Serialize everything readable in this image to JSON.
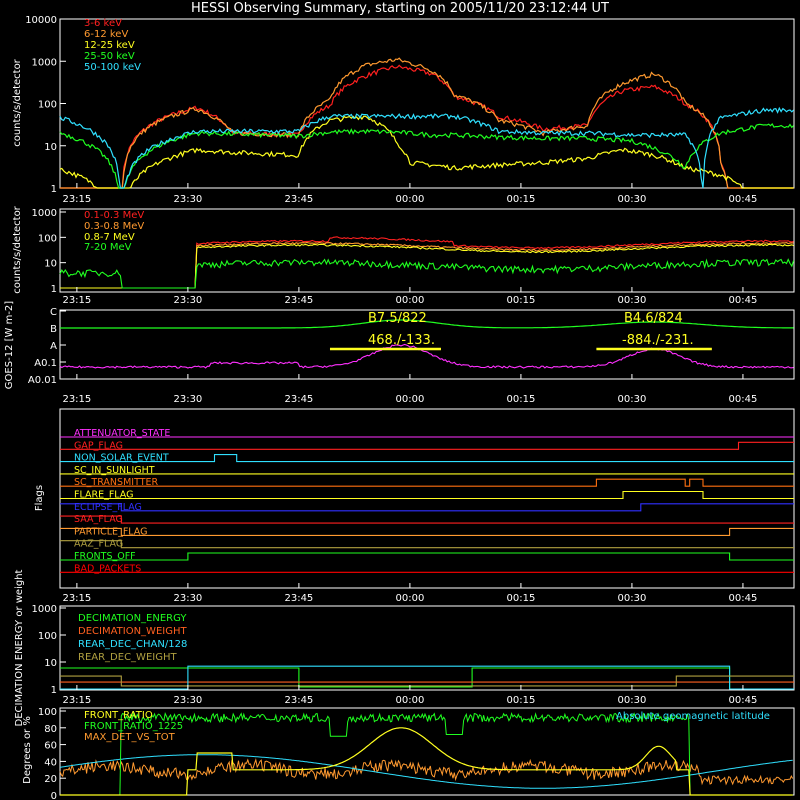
{
  "title": "HESSI Observing Summary, starting on 2005/11/20 23:12:44 UT",
  "time_labels": [
    "23:15",
    "23:30",
    "23:45",
    "00:00",
    "00:15",
    "00:30",
    "00:45"
  ],
  "colors": {
    "bg": "#000000",
    "axis": "#ffffff",
    "red": "#ff2020",
    "orange": "#ff9a30",
    "yellow": "#ffff20",
    "green": "#20ff20",
    "cyan": "#30e0ff",
    "magenta": "#ff30ff",
    "blue": "#3030ff",
    "olive": "#b0a040",
    "darkorange": "#ff7010",
    "darkred": "#ff0000"
  },
  "chart_data": [
    {
      "type": "line",
      "panel": "hxr",
      "ylabel": "counts/s/detector",
      "yscale": "log",
      "ylim": [
        1,
        10000
      ],
      "yticks": [
        "1",
        "10",
        "100",
        "1000",
        "10000"
      ],
      "series": [
        {
          "name": "3-6 keV",
          "color": "red",
          "points": [
            [
              23.2,
              0
            ],
            [
              23.35,
              0
            ],
            [
              23.52,
              80
            ],
            [
              23.6,
              20
            ],
            [
              23.75,
              18
            ],
            [
              23.82,
              90
            ],
            [
              23.9,
              450
            ],
            [
              23.97,
              750
            ],
            [
              24.05,
              500
            ],
            [
              24.1,
              150
            ],
            [
              24.2,
              50
            ],
            [
              24.3,
              25
            ],
            [
              24.4,
              30
            ],
            [
              24.48,
              200
            ],
            [
              24.55,
              250
            ],
            [
              24.62,
              100
            ],
            [
              24.7,
              4
            ],
            [
              24.72,
              0
            ],
            [
              24.8,
              0
            ]
          ]
        },
        {
          "name": "6-12 keV",
          "color": "orange",
          "points": [
            [
              23.2,
              0
            ],
            [
              23.35,
              0
            ],
            [
              23.52,
              75
            ],
            [
              23.6,
              20
            ],
            [
              23.75,
              18
            ],
            [
              23.82,
              120
            ],
            [
              23.9,
              800
            ],
            [
              23.97,
              1100
            ],
            [
              24.05,
              600
            ],
            [
              24.1,
              160
            ],
            [
              24.2,
              40
            ],
            [
              24.3,
              20
            ],
            [
              24.4,
              30
            ],
            [
              24.48,
              300
            ],
            [
              24.55,
              500
            ],
            [
              24.62,
              100
            ],
            [
              24.7,
              4
            ],
            [
              24.72,
              0
            ],
            [
              24.8,
              0
            ]
          ]
        },
        {
          "name": "12-25 keV",
          "color": "yellow",
          "points": [
            [
              23.2,
              3
            ],
            [
              23.35,
              0
            ],
            [
              23.52,
              8
            ],
            [
              23.6,
              7
            ],
            [
              23.75,
              6
            ],
            [
              23.82,
              40
            ],
            [
              23.9,
              50
            ],
            [
              23.97,
              12
            ],
            [
              24.0,
              4
            ],
            [
              24.1,
              3
            ],
            [
              24.3,
              4
            ],
            [
              24.4,
              5
            ],
            [
              24.48,
              8
            ],
            [
              24.55,
              6
            ],
            [
              24.62,
              3
            ],
            [
              24.7,
              2
            ],
            [
              24.8,
              0
            ]
          ]
        },
        {
          "name": "25-50 keV",
          "color": "green",
          "points": [
            [
              23.2,
              22
            ],
            [
              23.35,
              0
            ],
            [
              23.52,
              20
            ],
            [
              23.6,
              19
            ],
            [
              23.75,
              17
            ],
            [
              23.82,
              21
            ],
            [
              23.9,
              22
            ],
            [
              23.97,
              21
            ],
            [
              24.05,
              18
            ],
            [
              24.1,
              18
            ],
            [
              24.2,
              16
            ],
            [
              24.3,
              15
            ],
            [
              24.4,
              15
            ],
            [
              24.5,
              13
            ],
            [
              24.62,
              3
            ],
            [
              24.7,
              20
            ],
            [
              24.8,
              30
            ]
          ]
        },
        {
          "name": "50-100 keV",
          "color": "cyan",
          "points": [
            [
              23.2,
              50
            ],
            [
              23.35,
              0
            ],
            [
              23.52,
              22
            ],
            [
              23.6,
              22
            ],
            [
              23.75,
              22
            ],
            [
              23.82,
              50
            ],
            [
              23.9,
              50
            ],
            [
              23.97,
              50
            ],
            [
              24.05,
              50
            ],
            [
              24.1,
              50
            ],
            [
              24.2,
              22
            ],
            [
              24.3,
              20
            ],
            [
              24.4,
              20
            ],
            [
              24.5,
              18
            ],
            [
              24.62,
              18
            ],
            [
              24.66,
              0
            ],
            [
              24.7,
              45
            ],
            [
              24.8,
              70
            ]
          ]
        }
      ]
    },
    {
      "type": "line",
      "panel": "gamma",
      "ylabel": "counts/s/detector",
      "yscale": "log",
      "ylim": [
        1,
        1000
      ],
      "yticks": [
        "1",
        "10",
        "100",
        "1000"
      ],
      "series": [
        {
          "name": "0.1-0.3 MeV",
          "color": "red"
        },
        {
          "name": "0.3-0.8 MeV",
          "color": "orange"
        },
        {
          "name": "0.8-7 MeV",
          "color": "yellow"
        },
        {
          "name": "7-20 MeV",
          "color": "green"
        }
      ]
    },
    {
      "type": "line",
      "panel": "goes",
      "ylabel": "GOES-12 [W m-2]",
      "yticks": [
        "A0.01",
        "A0.1",
        "A",
        "B",
        "C"
      ],
      "annotations": [
        "B7.5/822",
        "B4.6/824",
        "468./-133.",
        "-884./-231."
      ]
    },
    {
      "type": "table",
      "panel": "flags",
      "ylabel": "Flags",
      "flags": [
        {
          "name": "ATTENUATOR_STATE",
          "color": "magenta"
        },
        {
          "name": "GAP_FLAG",
          "color": "red"
        },
        {
          "name": "NON_SOLAR_EVENT",
          "color": "cyan"
        },
        {
          "name": "SC_IN_SUNLIGHT",
          "color": "yellow"
        },
        {
          "name": "SC_TRANSMITTER",
          "color": "darkorange"
        },
        {
          "name": "FLARE_FLAG",
          "color": "yellow"
        },
        {
          "name": "ECLIPSE_FLAG",
          "color": "blue"
        },
        {
          "name": "SAA_FLAG",
          "color": "red"
        },
        {
          "name": "PARTICLE_FLAG",
          "color": "orange"
        },
        {
          "name": "AAZ_FLAG",
          "color": "olive"
        },
        {
          "name": "FRONTS_OFF",
          "color": "green"
        },
        {
          "name": "BAD_PACKETS",
          "color": "darkred"
        }
      ]
    },
    {
      "type": "line",
      "panel": "decimation",
      "ylabel": "DECIMATION ENERGY or weight",
      "yticks": [
        "1",
        "10",
        "100",
        "1000"
      ],
      "series": [
        {
          "name": "DECIMATION_ENERGY",
          "color": "green"
        },
        {
          "name": "DECIMATION_WEIGHT",
          "color": "red"
        },
        {
          "name": "REAR_DEC_CHAN/128",
          "color": "cyan"
        },
        {
          "name": "REAR_DEC_WEIGHT",
          "color": "olive"
        }
      ]
    },
    {
      "type": "line",
      "panel": "ratio",
      "ylabel": "Degrees or %",
      "ylim": [
        0,
        100
      ],
      "yticks": [
        "0",
        "20",
        "40",
        "60",
        "80",
        "100"
      ],
      "series": [
        {
          "name": "FRONT_RATIO",
          "color": "yellow"
        },
        {
          "name": "FRONT_RATIO_1225",
          "color": "green"
        },
        {
          "name": "MAX_DET_VS_TOT",
          "color": "orange"
        },
        {
          "name": "Absolute geomagnetic latitude",
          "color": "cyan"
        }
      ]
    }
  ]
}
